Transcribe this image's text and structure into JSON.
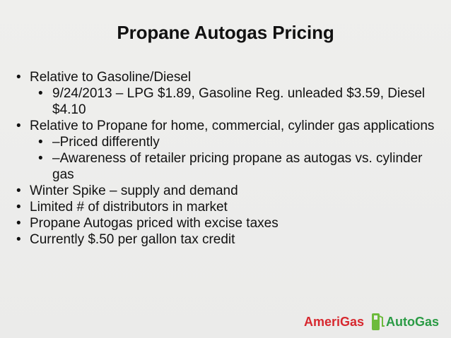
{
  "slide": {
    "title": "Propane Autogas Pricing",
    "items": [
      {
        "level": 1,
        "text": "Relative to Gasoline/Diesel"
      },
      {
        "level": 2,
        "text": "9/24/2013 – LPG $1.89, Gasoline Reg. unleaded $3.59, Diesel $4.10"
      },
      {
        "level": 1,
        "text": "Relative to Propane for home, commercial, cylinder gas applications"
      },
      {
        "level": 2,
        "text": "–Priced differently"
      },
      {
        "level": 2,
        "text": "–Awareness of retailer pricing propane as autogas vs. cylinder gas"
      },
      {
        "level": 1,
        "text": "Winter Spike – supply and demand"
      },
      {
        "level": 1,
        "text": "Limited # of distributors in market"
      },
      {
        "level": 1,
        "text": "Propane Autogas priced with excise taxes"
      },
      {
        "level": 1,
        "text": "Currently $.50 per gallon tax credit"
      }
    ]
  },
  "logo": {
    "left_text": "AmeriGas",
    "right_text": "AutoGas",
    "colors": {
      "amerigas_red": "#d7282f",
      "autogas_green": "#2b9b45",
      "pump_green": "#6dbb3c"
    }
  }
}
